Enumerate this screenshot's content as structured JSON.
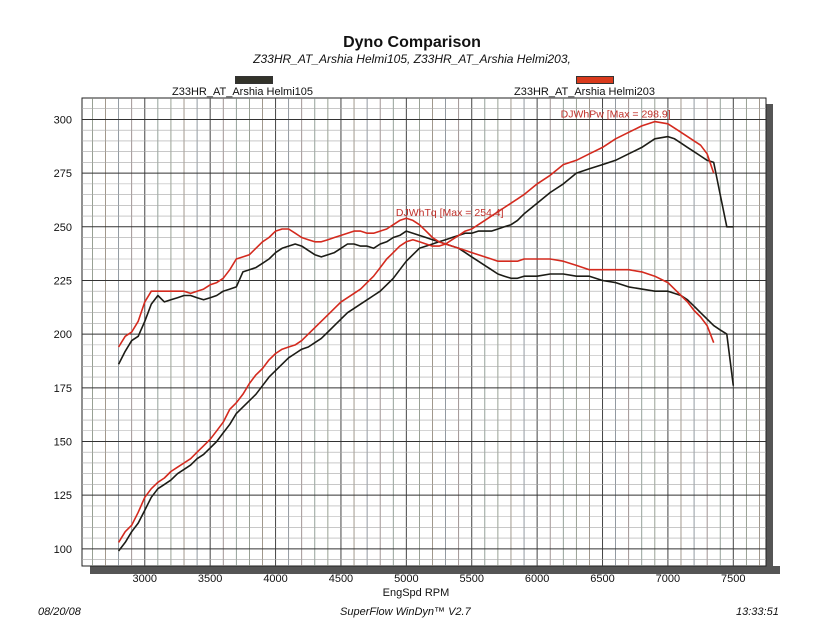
{
  "chart_data": {
    "type": "line",
    "title": "Dyno Comparison",
    "subtitle": "Z33HR_AT_Arshia Helmi105, Z33HR_AT_Arshia Helmi203,",
    "xlabel": "EngSpd  RPM",
    "ylabel": "",
    "xlim": [
      2520,
      7750
    ],
    "ylim": [
      92,
      310
    ],
    "x_ticks": [
      3000,
      3500,
      4000,
      4500,
      5000,
      5500,
      6000,
      6500,
      7000,
      7500
    ],
    "y_ticks": [
      100,
      125,
      150,
      175,
      200,
      225,
      250,
      275,
      300
    ],
    "grid": true,
    "legend": [
      {
        "name": "Z33HR_AT_Arshia Helmi105",
        "color": "#1c1c16",
        "swatch": "#33332a"
      },
      {
        "name": "Z33HR_AT_Arshia Helmi203",
        "color": "#d42a1e",
        "swatch": "#d93a1c"
      }
    ],
    "annotations": [
      {
        "text": "DJWhPw [Max = 298.9]",
        "x": 6180,
        "y": 301,
        "color": "#c0302a"
      },
      {
        "text": "DJWhTq [Max = 254.4]",
        "x": 4920,
        "y": 255,
        "color": "#c0302a"
      }
    ],
    "series": [
      {
        "name": "Z33HR_AT_Arshia Helmi105 Torque",
        "color": "#1c1c16",
        "x": [
          2800,
          2850,
          2900,
          2950,
          3000,
          3050,
          3100,
          3150,
          3200,
          3250,
          3300,
          3350,
          3400,
          3450,
          3500,
          3550,
          3600,
          3650,
          3700,
          3750,
          3800,
          3850,
          3900,
          3950,
          4000,
          4050,
          4100,
          4150,
          4200,
          4250,
          4300,
          4350,
          4400,
          4450,
          4500,
          4550,
          4600,
          4650,
          4700,
          4750,
          4800,
          4850,
          4900,
          4950,
          5000,
          5050,
          5100,
          5150,
          5200,
          5250,
          5300,
          5350,
          5400,
          5450,
          5500,
          5550,
          5600,
          5650,
          5700,
          5750,
          5800,
          5850,
          5900,
          6000,
          6100,
          6200,
          6300,
          6400,
          6500,
          6600,
          6700,
          6800,
          6900,
          7000,
          7050,
          7100,
          7150,
          7200,
          7250,
          7300,
          7350,
          7400,
          7450,
          7500
        ],
        "values": [
          186,
          192,
          197,
          199,
          206,
          214,
          218,
          215,
          216,
          217,
          218,
          218,
          217,
          216,
          217,
          218,
          220,
          221,
          222,
          229,
          230,
          231,
          233,
          235,
          238,
          240,
          241,
          242,
          241,
          239,
          237,
          236,
          237,
          238,
          240,
          242,
          242,
          241,
          241,
          240,
          242,
          243,
          245,
          246,
          248,
          247,
          246,
          245,
          244,
          243,
          242,
          241,
          240,
          238,
          236,
          234,
          232,
          230,
          228,
          227,
          226,
          226,
          227,
          227,
          228,
          228,
          227,
          227,
          225,
          224,
          222,
          221,
          220,
          220,
          219,
          218,
          216,
          213,
          210,
          207,
          204,
          202,
          200,
          176
        ]
      },
      {
        "name": "Z33HR_AT_Arshia Helmi105 Power",
        "color": "#1c1c16",
        "x": [
          2800,
          2850,
          2900,
          2950,
          3000,
          3050,
          3100,
          3150,
          3200,
          3250,
          3300,
          3350,
          3400,
          3450,
          3500,
          3550,
          3600,
          3650,
          3700,
          3750,
          3800,
          3850,
          3900,
          3950,
          4000,
          4050,
          4100,
          4150,
          4200,
          4250,
          4300,
          4350,
          4400,
          4450,
          4500,
          4550,
          4600,
          4650,
          4700,
          4750,
          4800,
          4850,
          4900,
          4950,
          5000,
          5050,
          5100,
          5150,
          5200,
          5250,
          5300,
          5350,
          5400,
          5450,
          5500,
          5550,
          5600,
          5650,
          5700,
          5750,
          5800,
          5850,
          5900,
          6000,
          6100,
          6200,
          6300,
          6400,
          6500,
          6600,
          6700,
          6800,
          6900,
          7000,
          7050,
          7100,
          7150,
          7200,
          7250,
          7300,
          7350,
          7400,
          7450,
          7500
        ],
        "values": [
          99,
          103,
          108,
          112,
          118,
          124,
          128,
          130,
          132,
          135,
          137,
          139,
          142,
          144,
          147,
          150,
          154,
          158,
          163,
          166,
          169,
          172,
          176,
          180,
          183,
          186,
          189,
          191,
          193,
          194,
          196,
          198,
          201,
          204,
          207,
          210,
          212,
          214,
          216,
          218,
          220,
          223,
          226,
          230,
          234,
          237,
          240,
          241,
          242,
          243,
          244,
          245,
          246,
          247,
          247,
          248,
          248,
          248,
          249,
          250,
          251,
          253,
          256,
          261,
          266,
          270,
          275,
          277,
          279,
          281,
          284,
          287,
          291,
          292,
          291,
          289,
          287,
          285,
          283,
          281,
          280,
          265,
          250,
          250
        ]
      },
      {
        "name": "Z33HR_AT_Arshia Helmi203 Torque",
        "color": "#d42a1e",
        "x": [
          2800,
          2850,
          2900,
          2950,
          3000,
          3050,
          3100,
          3150,
          3200,
          3250,
          3300,
          3350,
          3400,
          3450,
          3500,
          3550,
          3600,
          3650,
          3700,
          3750,
          3800,
          3850,
          3900,
          3950,
          4000,
          4050,
          4100,
          4150,
          4200,
          4250,
          4300,
          4350,
          4400,
          4450,
          4500,
          4550,
          4600,
          4650,
          4700,
          4750,
          4800,
          4850,
          4900,
          4950,
          5000,
          5050,
          5100,
          5150,
          5200,
          5250,
          5300,
          5350,
          5400,
          5450,
          5500,
          5550,
          5600,
          5650,
          5700,
          5750,
          5800,
          5850,
          5900,
          6000,
          6100,
          6200,
          6300,
          6400,
          6500,
          6600,
          6700,
          6800,
          6900,
          7000,
          7050,
          7100,
          7150,
          7200,
          7250,
          7300,
          7350
        ],
        "values": [
          194,
          199,
          201,
          206,
          215,
          220,
          220,
          220,
          220,
          220,
          220,
          219,
          220,
          221,
          223,
          224,
          226,
          230,
          235,
          236,
          237,
          240,
          243,
          245,
          248,
          249,
          249,
          247,
          245,
          244,
          243,
          243,
          244,
          245,
          246,
          247,
          248,
          248,
          247,
          247,
          248,
          249,
          251,
          253,
          254,
          253,
          251,
          248,
          245,
          243,
          242,
          241,
          240,
          239,
          238,
          237,
          236,
          235,
          234,
          234,
          234,
          234,
          235,
          235,
          235,
          234,
          232,
          230,
          230,
          230,
          230,
          229,
          227,
          224,
          221,
          218,
          215,
          211,
          208,
          204,
          196
        ]
      },
      {
        "name": "Z33HR_AT_Arshia Helmi203 Power",
        "color": "#d42a1e",
        "x": [
          2800,
          2850,
          2900,
          2950,
          3000,
          3050,
          3100,
          3150,
          3200,
          3250,
          3300,
          3350,
          3400,
          3450,
          3500,
          3550,
          3600,
          3650,
          3700,
          3750,
          3800,
          3850,
          3900,
          3950,
          4000,
          4050,
          4100,
          4150,
          4200,
          4250,
          4300,
          4350,
          4400,
          4450,
          4500,
          4550,
          4600,
          4650,
          4700,
          4750,
          4800,
          4850,
          4900,
          4950,
          5000,
          5050,
          5100,
          5150,
          5200,
          5250,
          5300,
          5350,
          5400,
          5450,
          5500,
          5550,
          5600,
          5650,
          5700,
          5750,
          5800,
          5850,
          5900,
          6000,
          6100,
          6200,
          6300,
          6400,
          6500,
          6600,
          6700,
          6800,
          6900,
          7000,
          7050,
          7100,
          7150,
          7200,
          7250,
          7300,
          7350
        ],
        "values": [
          103,
          108,
          111,
          117,
          124,
          128,
          131,
          133,
          136,
          138,
          140,
          142,
          145,
          148,
          151,
          155,
          159,
          165,
          168,
          172,
          177,
          181,
          184,
          188,
          191,
          193,
          194,
          195,
          197,
          200,
          203,
          206,
          209,
          212,
          215,
          217,
          219,
          221,
          224,
          227,
          231,
          235,
          238,
          241,
          243,
          244,
          243,
          242,
          241,
          241,
          242,
          244,
          246,
          248,
          249,
          251,
          253,
          255,
          257,
          259,
          261,
          263,
          265,
          270,
          274,
          279,
          281,
          284,
          287,
          291,
          294,
          297,
          299,
          298,
          296,
          294,
          292,
          290,
          288,
          284,
          275
        ]
      }
    ]
  },
  "footer": {
    "date": "08/20/08",
    "software": "SuperFlow WinDyn™ V2.7",
    "time": "13:33:51"
  }
}
